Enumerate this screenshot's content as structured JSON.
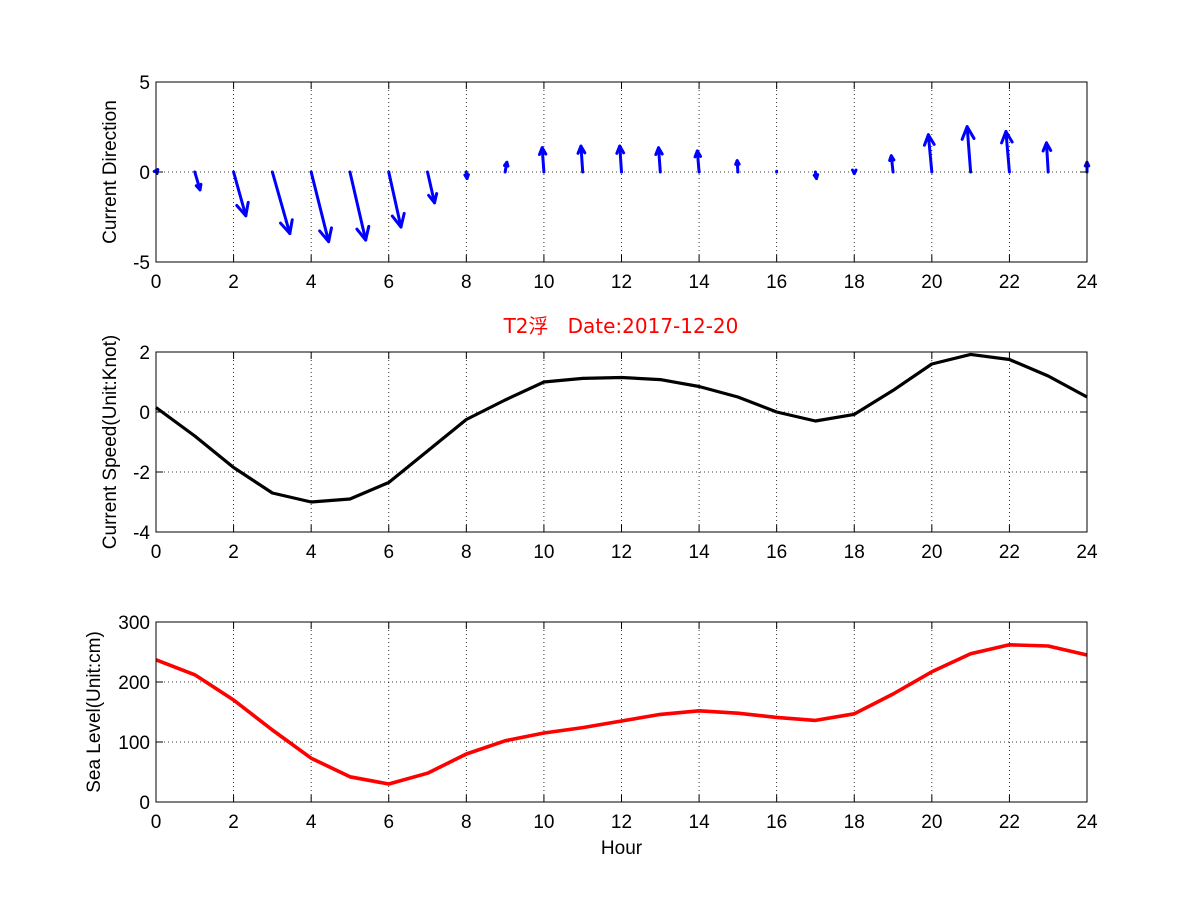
{
  "title": "T2浮   Date:2017-12-20",
  "colors": {
    "direction": "#0000FF",
    "speed": "#000000",
    "sea_level": "#FF0000",
    "title": "#FF0000"
  },
  "chart_data": [
    {
      "type": "quiver",
      "ylabel": "Current Direction",
      "xlabel": "",
      "xlim": [
        0,
        24
      ],
      "ylim": [
        -5,
        5
      ],
      "x_ticks": [
        0,
        2,
        4,
        6,
        8,
        10,
        12,
        14,
        16,
        18,
        20,
        22,
        24
      ],
      "y_ticks": [
        -5,
        0,
        5
      ],
      "grid": true,
      "vectors": [
        {
          "x": 0,
          "u": 0.05,
          "v": 0.15
        },
        {
          "x": 1,
          "u": 0.15,
          "v": -1.1
        },
        {
          "x": 2,
          "u": 0.35,
          "v": -2.7
        },
        {
          "x": 3,
          "u": 0.5,
          "v": -3.8
        },
        {
          "x": 4,
          "u": 0.5,
          "v": -4.3
        },
        {
          "x": 5,
          "u": 0.45,
          "v": -4.2
        },
        {
          "x": 6,
          "u": 0.35,
          "v": -3.4
        },
        {
          "x": 7,
          "u": 0.2,
          "v": -1.9
        },
        {
          "x": 8,
          "u": 0.02,
          "v": -0.4
        },
        {
          "x": 9,
          "u": 0.05,
          "v": 0.6
        },
        {
          "x": 10,
          "u": -0.05,
          "v": 1.5
        },
        {
          "x": 11,
          "u": -0.05,
          "v": 1.6
        },
        {
          "x": 12,
          "u": -0.05,
          "v": 1.6
        },
        {
          "x": 13,
          "u": -0.05,
          "v": 1.5
        },
        {
          "x": 14,
          "u": -0.05,
          "v": 1.3
        },
        {
          "x": 15,
          "u": -0.02,
          "v": 0.7
        },
        {
          "x": 16,
          "u": 0.0,
          "v": 0.05
        },
        {
          "x": 17,
          "u": 0.03,
          "v": -0.4
        },
        {
          "x": 18,
          "u": 0.0,
          "v": -0.1
        },
        {
          "x": 19,
          "u": -0.05,
          "v": 1.0
        },
        {
          "x": 20,
          "u": -0.1,
          "v": 2.3
        },
        {
          "x": 21,
          "u": -0.1,
          "v": 2.8
        },
        {
          "x": 22,
          "u": -0.1,
          "v": 2.5
        },
        {
          "x": 23,
          "u": -0.05,
          "v": 1.8
        },
        {
          "x": 24,
          "u": 0.0,
          "v": 0.6
        }
      ]
    },
    {
      "type": "line",
      "ylabel": "Current Speed(Unit:Knot)",
      "xlabel": "",
      "xlim": [
        0,
        24
      ],
      "ylim": [
        -4,
        2
      ],
      "x_ticks": [
        0,
        2,
        4,
        6,
        8,
        10,
        12,
        14,
        16,
        18,
        20,
        22,
        24
      ],
      "y_ticks": [
        -4,
        -2,
        0,
        2
      ],
      "grid": true,
      "x": [
        0,
        1,
        2,
        3,
        4,
        5,
        6,
        7,
        8,
        9,
        10,
        11,
        12,
        13,
        14,
        15,
        16,
        17,
        18,
        19,
        20,
        21,
        22,
        23,
        24
      ],
      "y": [
        0.15,
        -0.8,
        -1.85,
        -2.7,
        -3.0,
        -2.9,
        -2.35,
        -1.3,
        -0.25,
        0.4,
        1.0,
        1.12,
        1.15,
        1.08,
        0.85,
        0.5,
        0.0,
        -0.3,
        -0.08,
        0.72,
        1.6,
        1.92,
        1.75,
        1.2,
        0.5
      ]
    },
    {
      "type": "line",
      "ylabel": "Sea Level(Unit:cm)",
      "xlabel": "Hour",
      "xlim": [
        0,
        24
      ],
      "ylim": [
        0,
        300
      ],
      "x_ticks": [
        0,
        2,
        4,
        6,
        8,
        10,
        12,
        14,
        16,
        18,
        20,
        22,
        24
      ],
      "y_ticks": [
        0,
        100,
        200,
        300
      ],
      "grid": true,
      "x": [
        0,
        1,
        2,
        3,
        4,
        5,
        6,
        7,
        8,
        9,
        10,
        11,
        12,
        13,
        14,
        15,
        16,
        17,
        18,
        19,
        20,
        21,
        22,
        23,
        24
      ],
      "y": [
        237,
        212,
        170,
        120,
        73,
        42,
        30,
        48,
        80,
        102,
        115,
        124,
        135,
        146,
        152,
        148,
        141,
        136,
        147,
        180,
        217,
        247,
        262,
        260,
        245
      ]
    }
  ]
}
